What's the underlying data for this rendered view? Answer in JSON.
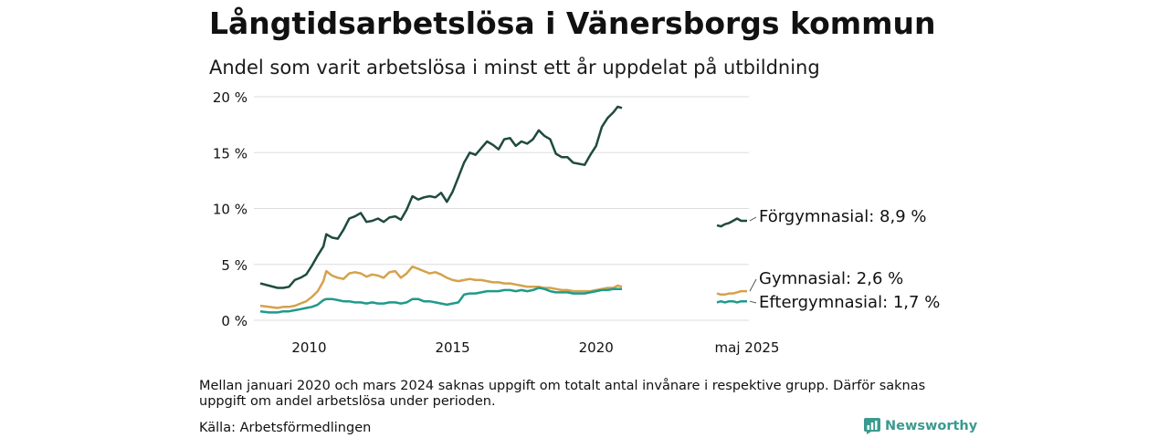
{
  "header": {
    "title": "Långtidsarbetslösa i Vänersborgs kommun",
    "subtitle": "Andel som varit arbetslösa i minst ett år uppdelat på utbildning"
  },
  "footer": {
    "note": "Mellan januari 2020 och mars 2024 saknas uppgift om totalt antal invånare i respektive grupp. Därför saknas uppgift om andel arbetslösa under perioden.",
    "source": "Källa: Arbetsförmedlingen",
    "brand": "Newsworthy"
  },
  "colors": {
    "forgymnasial": "#1f4a40",
    "gymnasial": "#d4a24c",
    "eftergymnasial": "#1f9a8a",
    "grid": "#dddddd",
    "brand": "#3b9a8f"
  },
  "chart_data": {
    "type": "line",
    "ylim": [
      0,
      20
    ],
    "y_ticks": [
      0,
      5,
      10,
      15,
      20
    ],
    "y_tick_labels": [
      "0 %",
      "5 %",
      "10 %",
      "15 %",
      "20 %"
    ],
    "x_range": [
      2008.3,
      2020.9
    ],
    "x_ticks": [
      2010,
      2015,
      2020
    ],
    "x_tick_labels": [
      "2010",
      "2015",
      "2020"
    ],
    "recent_label": "maj 2025",
    "recent_x_range": [
      2024.25,
      2025.37
    ],
    "grid": true,
    "series": [
      {
        "name": "Förgymnasial",
        "color_key": "forgymnasial",
        "end_label": "Förgymnasial: 8,9 %",
        "points": [
          [
            2008.3,
            3.3
          ],
          [
            2008.6,
            3.1
          ],
          [
            2008.9,
            2.9
          ],
          [
            2009.1,
            2.9
          ],
          [
            2009.3,
            3.0
          ],
          [
            2009.5,
            3.6
          ],
          [
            2009.7,
            3.8
          ],
          [
            2009.9,
            4.1
          ],
          [
            2010.1,
            4.9
          ],
          [
            2010.3,
            5.8
          ],
          [
            2010.5,
            6.6
          ],
          [
            2010.6,
            7.7
          ],
          [
            2010.8,
            7.4
          ],
          [
            2011.0,
            7.3
          ],
          [
            2011.2,
            8.1
          ],
          [
            2011.4,
            9.1
          ],
          [
            2011.6,
            9.3
          ],
          [
            2011.8,
            9.6
          ],
          [
            2012.0,
            8.8
          ],
          [
            2012.2,
            8.9
          ],
          [
            2012.4,
            9.1
          ],
          [
            2012.6,
            8.8
          ],
          [
            2012.8,
            9.2
          ],
          [
            2013.0,
            9.3
          ],
          [
            2013.2,
            9.0
          ],
          [
            2013.4,
            9.9
          ],
          [
            2013.6,
            11.1
          ],
          [
            2013.8,
            10.8
          ],
          [
            2014.0,
            11.0
          ],
          [
            2014.2,
            11.1
          ],
          [
            2014.4,
            11.0
          ],
          [
            2014.6,
            11.4
          ],
          [
            2014.8,
            10.6
          ],
          [
            2015.0,
            11.5
          ],
          [
            2015.2,
            12.8
          ],
          [
            2015.4,
            14.1
          ],
          [
            2015.6,
            15.0
          ],
          [
            2015.8,
            14.8
          ],
          [
            2016.0,
            15.4
          ],
          [
            2016.2,
            16.0
          ],
          [
            2016.4,
            15.7
          ],
          [
            2016.6,
            15.3
          ],
          [
            2016.8,
            16.2
          ],
          [
            2017.0,
            16.3
          ],
          [
            2017.2,
            15.6
          ],
          [
            2017.4,
            16.0
          ],
          [
            2017.6,
            15.8
          ],
          [
            2017.8,
            16.2
          ],
          [
            2018.0,
            17.0
          ],
          [
            2018.2,
            16.5
          ],
          [
            2018.4,
            16.2
          ],
          [
            2018.6,
            14.9
          ],
          [
            2018.8,
            14.6
          ],
          [
            2019.0,
            14.6
          ],
          [
            2019.2,
            14.1
          ],
          [
            2019.4,
            14.0
          ],
          [
            2019.6,
            13.9
          ],
          [
            2019.8,
            14.8
          ],
          [
            2020.0,
            15.6
          ],
          [
            2020.2,
            17.3
          ],
          [
            2020.4,
            18.1
          ],
          [
            2020.6,
            18.6
          ],
          [
            2020.75,
            19.1
          ],
          [
            2020.9,
            19.0
          ]
        ],
        "recent_points": [
          [
            2024.25,
            8.5
          ],
          [
            2024.4,
            8.4
          ],
          [
            2024.55,
            8.6
          ],
          [
            2024.7,
            8.7
          ],
          [
            2024.85,
            8.9
          ],
          [
            2025.0,
            9.1
          ],
          [
            2025.15,
            8.9
          ],
          [
            2025.37,
            8.9
          ]
        ]
      },
      {
        "name": "Gymnasial",
        "color_key": "gymnasial",
        "end_label": "Gymnasial: 2,6 %",
        "points": [
          [
            2008.3,
            1.3
          ],
          [
            2008.6,
            1.2
          ],
          [
            2008.9,
            1.1
          ],
          [
            2009.1,
            1.2
          ],
          [
            2009.3,
            1.2
          ],
          [
            2009.5,
            1.3
          ],
          [
            2009.7,
            1.5
          ],
          [
            2009.9,
            1.7
          ],
          [
            2010.1,
            2.1
          ],
          [
            2010.3,
            2.6
          ],
          [
            2010.5,
            3.5
          ],
          [
            2010.6,
            4.4
          ],
          [
            2010.8,
            4.0
          ],
          [
            2011.0,
            3.8
          ],
          [
            2011.2,
            3.7
          ],
          [
            2011.4,
            4.2
          ],
          [
            2011.6,
            4.3
          ],
          [
            2011.8,
            4.2
          ],
          [
            2012.0,
            3.9
          ],
          [
            2012.2,
            4.1
          ],
          [
            2012.4,
            4.0
          ],
          [
            2012.6,
            3.8
          ],
          [
            2012.8,
            4.3
          ],
          [
            2013.0,
            4.4
          ],
          [
            2013.2,
            3.8
          ],
          [
            2013.4,
            4.2
          ],
          [
            2013.6,
            4.8
          ],
          [
            2013.8,
            4.6
          ],
          [
            2014.0,
            4.4
          ],
          [
            2014.2,
            4.2
          ],
          [
            2014.4,
            4.3
          ],
          [
            2014.6,
            4.1
          ],
          [
            2014.8,
            3.8
          ],
          [
            2015.0,
            3.6
          ],
          [
            2015.2,
            3.5
          ],
          [
            2015.4,
            3.6
          ],
          [
            2015.6,
            3.7
          ],
          [
            2015.8,
            3.6
          ],
          [
            2016.0,
            3.6
          ],
          [
            2016.2,
            3.5
          ],
          [
            2016.4,
            3.4
          ],
          [
            2016.6,
            3.4
          ],
          [
            2016.8,
            3.3
          ],
          [
            2017.0,
            3.3
          ],
          [
            2017.2,
            3.2
          ],
          [
            2017.4,
            3.1
          ],
          [
            2017.6,
            3.0
          ],
          [
            2017.8,
            3.0
          ],
          [
            2018.0,
            3.0
          ],
          [
            2018.2,
            2.9
          ],
          [
            2018.4,
            2.9
          ],
          [
            2018.6,
            2.8
          ],
          [
            2018.8,
            2.7
          ],
          [
            2019.0,
            2.7
          ],
          [
            2019.2,
            2.6
          ],
          [
            2019.4,
            2.6
          ],
          [
            2019.6,
            2.6
          ],
          [
            2019.8,
            2.6
          ],
          [
            2020.0,
            2.7
          ],
          [
            2020.2,
            2.8
          ],
          [
            2020.4,
            2.9
          ],
          [
            2020.6,
            2.9
          ],
          [
            2020.75,
            3.1
          ],
          [
            2020.9,
            3.0
          ]
        ],
        "recent_points": [
          [
            2024.25,
            2.4
          ],
          [
            2024.4,
            2.3
          ],
          [
            2024.55,
            2.3
          ],
          [
            2024.7,
            2.4
          ],
          [
            2024.85,
            2.4
          ],
          [
            2025.0,
            2.5
          ],
          [
            2025.15,
            2.6
          ],
          [
            2025.37,
            2.6
          ]
        ]
      },
      {
        "name": "Eftergymnasial",
        "color_key": "eftergymnasial",
        "end_label": "Eftergymnasial: 1,7 %",
        "points": [
          [
            2008.3,
            0.8
          ],
          [
            2008.6,
            0.7
          ],
          [
            2008.9,
            0.7
          ],
          [
            2009.1,
            0.8
          ],
          [
            2009.3,
            0.8
          ],
          [
            2009.5,
            0.9
          ],
          [
            2009.7,
            1.0
          ],
          [
            2009.9,
            1.1
          ],
          [
            2010.1,
            1.2
          ],
          [
            2010.3,
            1.4
          ],
          [
            2010.5,
            1.8
          ],
          [
            2010.6,
            1.9
          ],
          [
            2010.8,
            1.9
          ],
          [
            2011.0,
            1.8
          ],
          [
            2011.2,
            1.7
          ],
          [
            2011.4,
            1.7
          ],
          [
            2011.6,
            1.6
          ],
          [
            2011.8,
            1.6
          ],
          [
            2012.0,
            1.5
          ],
          [
            2012.2,
            1.6
          ],
          [
            2012.4,
            1.5
          ],
          [
            2012.6,
            1.5
          ],
          [
            2012.8,
            1.6
          ],
          [
            2013.0,
            1.6
          ],
          [
            2013.2,
            1.5
          ],
          [
            2013.4,
            1.6
          ],
          [
            2013.6,
            1.9
          ],
          [
            2013.8,
            1.9
          ],
          [
            2014.0,
            1.7
          ],
          [
            2014.2,
            1.7
          ],
          [
            2014.4,
            1.6
          ],
          [
            2014.6,
            1.5
          ],
          [
            2014.8,
            1.4
          ],
          [
            2015.0,
            1.5
          ],
          [
            2015.2,
            1.6
          ],
          [
            2015.4,
            2.3
          ],
          [
            2015.6,
            2.4
          ],
          [
            2015.8,
            2.4
          ],
          [
            2016.0,
            2.5
          ],
          [
            2016.2,
            2.6
          ],
          [
            2016.4,
            2.6
          ],
          [
            2016.6,
            2.6
          ],
          [
            2016.8,
            2.7
          ],
          [
            2017.0,
            2.7
          ],
          [
            2017.2,
            2.6
          ],
          [
            2017.4,
            2.7
          ],
          [
            2017.6,
            2.6
          ],
          [
            2017.8,
            2.7
          ],
          [
            2018.0,
            2.9
          ],
          [
            2018.2,
            2.8
          ],
          [
            2018.4,
            2.6
          ],
          [
            2018.6,
            2.5
          ],
          [
            2018.8,
            2.5
          ],
          [
            2019.0,
            2.5
          ],
          [
            2019.2,
            2.4
          ],
          [
            2019.4,
            2.4
          ],
          [
            2019.6,
            2.4
          ],
          [
            2019.8,
            2.5
          ],
          [
            2020.0,
            2.6
          ],
          [
            2020.2,
            2.7
          ],
          [
            2020.4,
            2.7
          ],
          [
            2020.6,
            2.8
          ],
          [
            2020.75,
            2.8
          ],
          [
            2020.9,
            2.8
          ]
        ],
        "recent_points": [
          [
            2024.25,
            1.6
          ],
          [
            2024.4,
            1.7
          ],
          [
            2024.55,
            1.6
          ],
          [
            2024.7,
            1.7
          ],
          [
            2024.85,
            1.7
          ],
          [
            2025.0,
            1.6
          ],
          [
            2025.15,
            1.7
          ],
          [
            2025.37,
            1.7
          ]
        ]
      }
    ]
  }
}
